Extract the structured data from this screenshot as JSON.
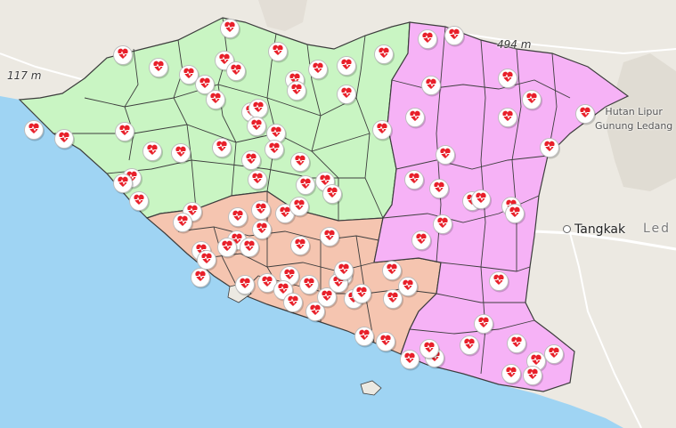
{
  "map": {
    "colors": {
      "sea": "#9fd4f3",
      "land": "#ece9e2",
      "green_zone": "#c9f5c3",
      "orange_zone": "#f5c5b0",
      "pink_zone": "#f6b2f6",
      "border": "#3d3d3d",
      "marker_heart": "#e8202a"
    },
    "marker_icon": "heart-pulse-icon",
    "labels": {
      "elev_west": "117 m",
      "elev_north": "494 m",
      "poi_line1": "Hutan Lipur",
      "poi_line2": "Gunung Ledang",
      "town_tangkak": "Tangkak",
      "town_partial": "Led"
    }
  }
}
